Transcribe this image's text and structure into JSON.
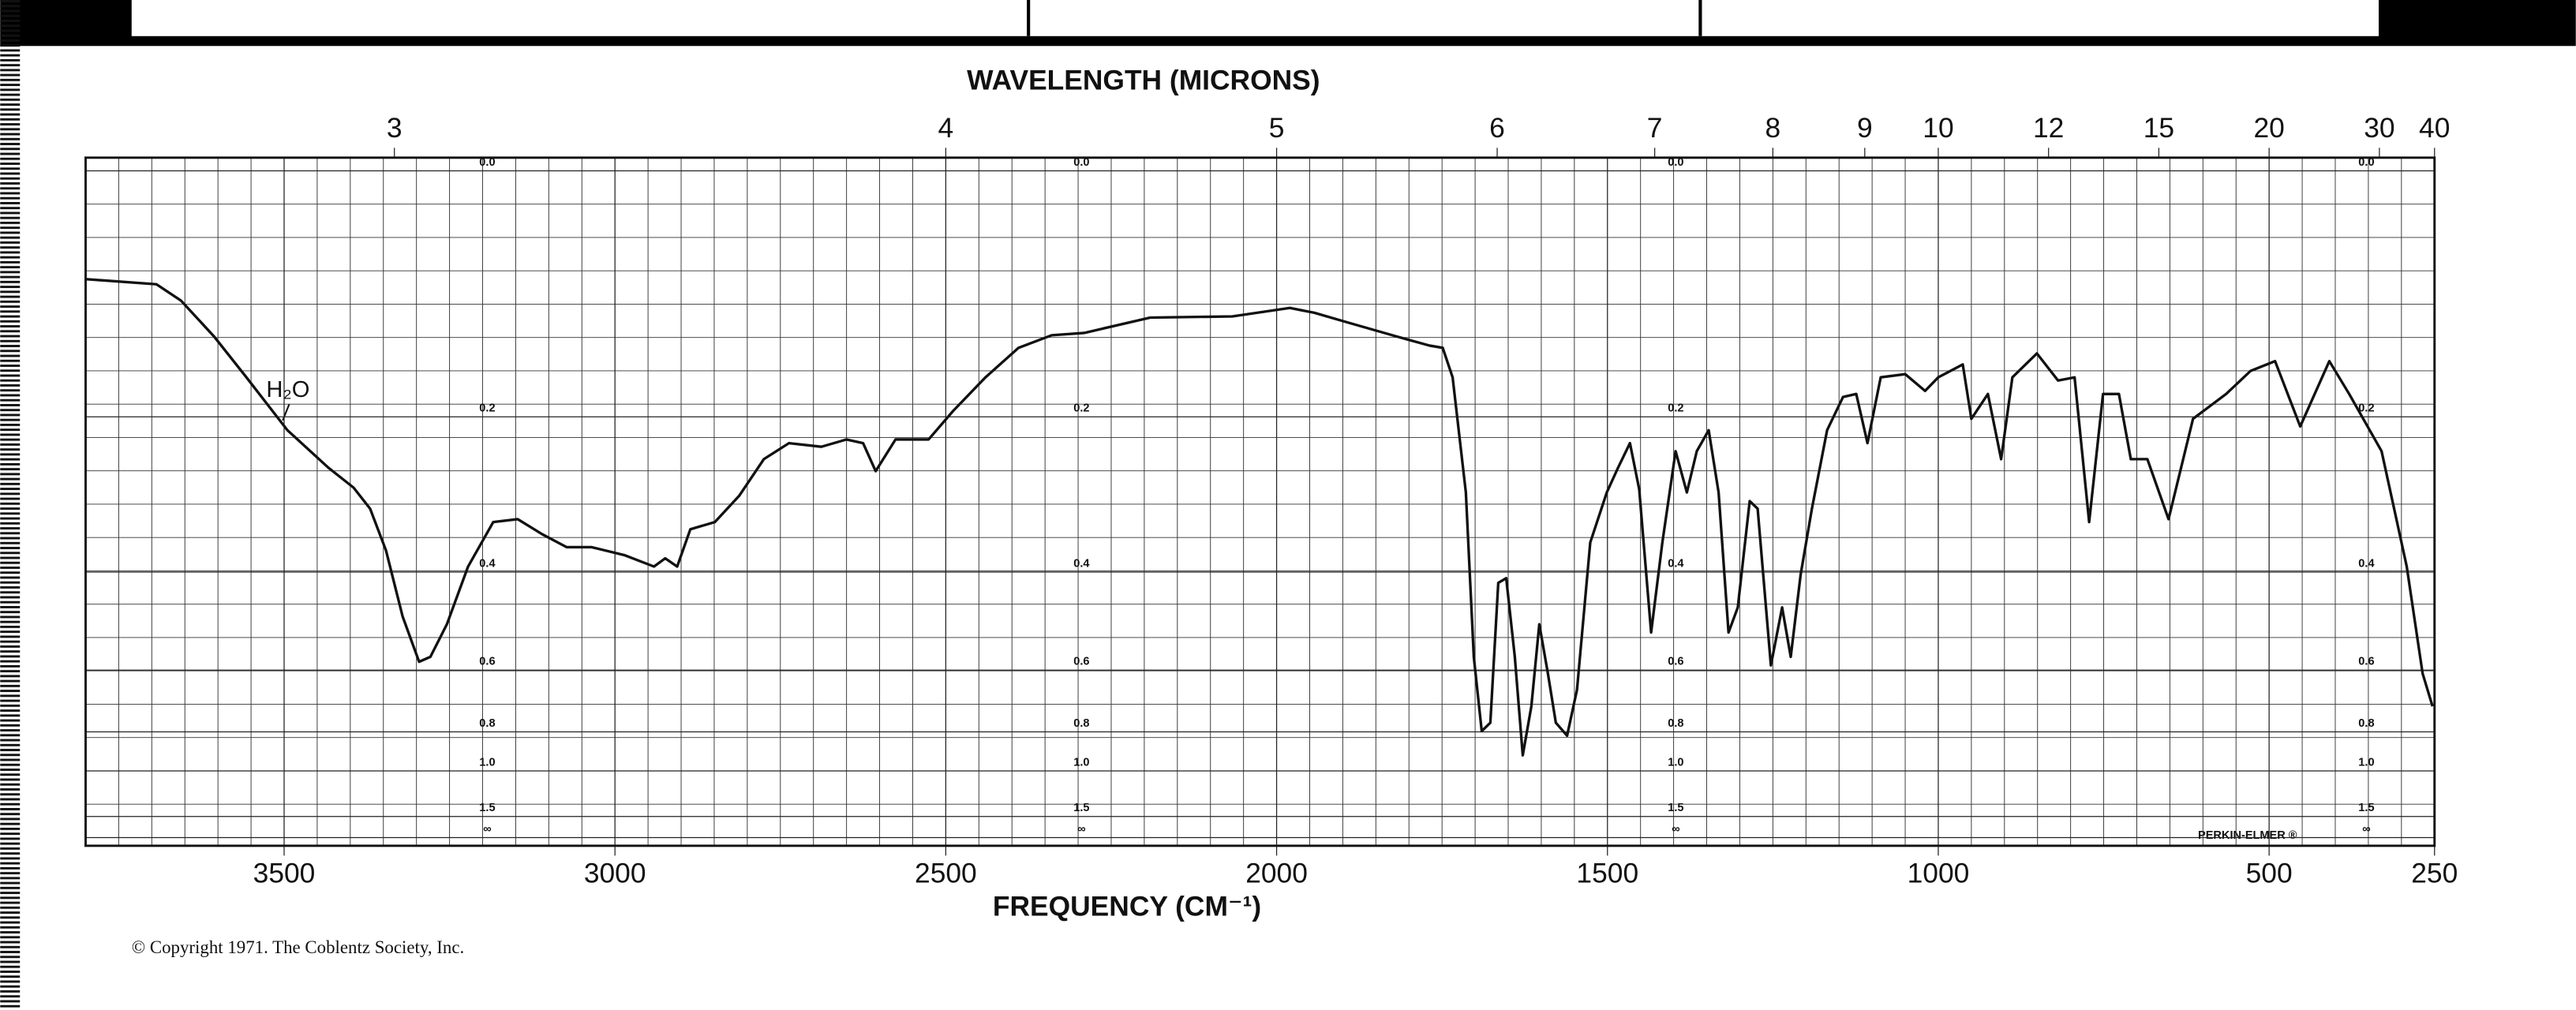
{
  "chart_data": {
    "type": "line",
    "x_label": "FREQUENCY (CM⁻¹)",
    "x2_label": "WAVELENGTH (MICRONS)",
    "annotation": "H₂O",
    "brand": "PERKIN-ELMER ®",
    "copyright": "© Copyright 1971.  The Coblentz Society, Inc.",
    "xlim": [
      3800,
      250
    ],
    "xticks": [
      3500,
      3000,
      2500,
      2000,
      1500,
      1000,
      500,
      250
    ],
    "x2_scale": "reciprocal",
    "x2ticks": [
      3,
      4,
      5,
      6,
      7,
      8,
      9,
      10,
      12,
      15,
      20,
      30,
      40
    ],
    "y_scale": "absorbance",
    "yticks": [
      {
        "value": 0,
        "label": "0.0"
      },
      0.2,
      0.4,
      0.6,
      0.8,
      {
        "value": 1,
        "label": "1.0"
      },
      1.5,
      {
        "value": null,
        "label": "∞"
      }
    ],
    "grid": true,
    "color": "#111111",
    "x": [
      3800,
      3693,
      3656,
      3606,
      3557,
      3495,
      3433,
      3395,
      3370,
      3346,
      3321,
      3296,
      3279,
      3254,
      3222,
      3184,
      3147,
      3110,
      3073,
      3035,
      2986,
      2941,
      2924,
      2906,
      2886,
      2849,
      2812,
      2775,
      2737,
      2688,
      2650,
      2625,
      2606,
      2576,
      2526,
      2489,
      2440,
      2390,
      2340,
      2291,
      2191,
      2067,
      1980,
      1943,
      1893,
      1819,
      1769,
      1749,
      1734,
      1714,
      1702,
      1690,
      1677,
      1665,
      1653,
      1640,
      1628,
      1615,
      1603,
      1590,
      1578,
      1561,
      1546,
      1526,
      1501,
      1484,
      1466,
      1452,
      1434,
      1417,
      1397,
      1380,
      1365,
      1347,
      1332,
      1317,
      1303,
      1285,
      1273,
      1253,
      1236,
      1223,
      1208,
      1191,
      1168,
      1144,
      1124,
      1107,
      1087,
      1050,
      1020,
      1000,
      963,
      950,
      925,
      905,
      888,
      851,
      819,
      794,
      772,
      751,
      727,
      709,
      684,
      652,
      615,
      565,
      528,
      491,
      453,
      409,
      379,
      330,
      292,
      268,
      253
    ],
    "values": [
      0.077,
      0.081,
      0.094,
      0.124,
      0.161,
      0.214,
      0.256,
      0.28,
      0.307,
      0.366,
      0.479,
      0.579,
      0.567,
      0.495,
      0.391,
      0.325,
      0.321,
      0.342,
      0.361,
      0.361,
      0.373,
      0.391,
      0.378,
      0.391,
      0.335,
      0.325,
      0.29,
      0.246,
      0.228,
      0.232,
      0.224,
      0.228,
      0.26,
      0.224,
      0.224,
      0.194,
      0.161,
      0.134,
      0.123,
      0.121,
      0.108,
      0.107,
      0.1,
      0.104,
      0.112,
      0.124,
      0.132,
      0.134,
      0.161,
      0.286,
      0.567,
      0.797,
      0.764,
      0.418,
      0.41,
      0.567,
      0.909,
      0.706,
      0.495,
      0.609,
      0.764,
      0.816,
      0.654,
      0.354,
      0.286,
      0.256,
      0.228,
      0.282,
      0.512,
      0.354,
      0.237,
      0.286,
      0.237,
      0.214,
      0.286,
      0.512,
      0.462,
      0.297,
      0.307,
      0.588,
      0.462,
      0.567,
      0.404,
      0.307,
      0.214,
      0.18,
      0.177,
      0.228,
      0.161,
      0.158,
      0.174,
      0.161,
      0.149,
      0.202,
      0.177,
      0.246,
      0.161,
      0.139,
      0.164,
      0.161,
      0.325,
      0.177,
      0.177,
      0.246,
      0.246,
      0.321,
      0.202,
      0.177,
      0.155,
      0.146,
      0.21,
      0.146,
      0.177,
      0.237,
      0.391,
      0.609,
      0.706
    ]
  }
}
